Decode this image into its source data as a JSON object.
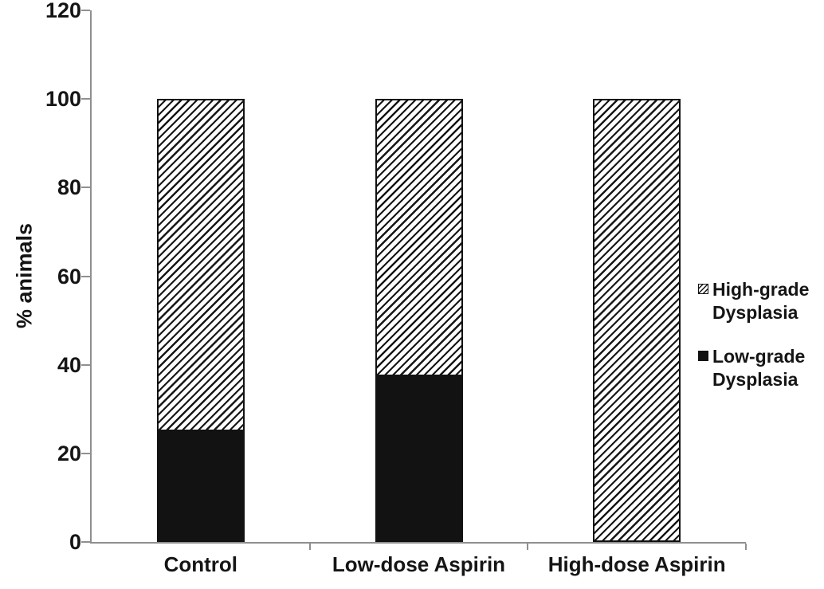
{
  "chart_data": {
    "type": "bar",
    "stacked": true,
    "title": "",
    "xlabel": "",
    "ylabel": "% animals",
    "ylim": [
      0,
      120
    ],
    "yticks": [
      0,
      20,
      40,
      60,
      80,
      100,
      120
    ],
    "categories": [
      "Control",
      "Low-dose Aspirin",
      "High-dose Aspirin"
    ],
    "series": [
      {
        "name": "Low-grade Dysplasia",
        "fill": "solid",
        "values": [
          25,
          37.5,
          0
        ]
      },
      {
        "name": "High-grade Dysplasia",
        "fill": "hatch",
        "values": [
          75,
          62.5,
          100
        ]
      }
    ],
    "legend": [
      {
        "line1": "High-grade",
        "line2": "Dysplasia",
        "swatch": "hatch"
      },
      {
        "line1": "Low-grade",
        "line2": "Dysplasia",
        "swatch": "solid"
      }
    ],
    "legend_position": "right",
    "grid": false,
    "axis_color": "#8f8f8f",
    "bar_color": "#121212",
    "background_color": "#ffffff"
  }
}
